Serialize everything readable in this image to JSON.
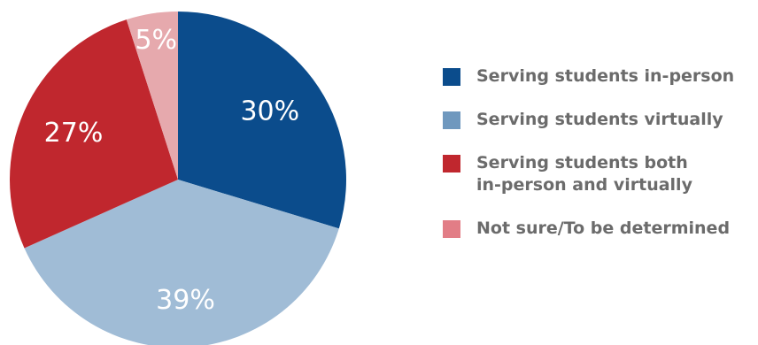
{
  "chart_data": {
    "type": "pie",
    "slices": [
      {
        "label": "Serving students in-person",
        "value": 30,
        "value_label": "30%",
        "color": "#0b4c8c"
      },
      {
        "label": "Serving students virtually",
        "value": 39,
        "value_label": "39%",
        "color": "#a0bcd6"
      },
      {
        "label": "Serving students both\nin-person and virtually",
        "value": 27,
        "value_label": "27%",
        "color": "#c0272e"
      },
      {
        "label": "Not sure/To be determined",
        "value": 5,
        "value_label": "5%",
        "color": "#e6a9ad"
      }
    ],
    "start_angle": "12 o'clock",
    "direction": "clockwise",
    "legend_position": "right"
  },
  "legend": {
    "items": [
      {
        "label": "Serving students in-person",
        "color": "#0b4c8c"
      },
      {
        "label": "Serving students virtually",
        "color": "#6f98be"
      },
      {
        "label": "Serving students both\nin-person and virtually",
        "color": "#c0272e"
      },
      {
        "label": "Not sure/To be determined",
        "color": "#e27d86"
      }
    ]
  }
}
